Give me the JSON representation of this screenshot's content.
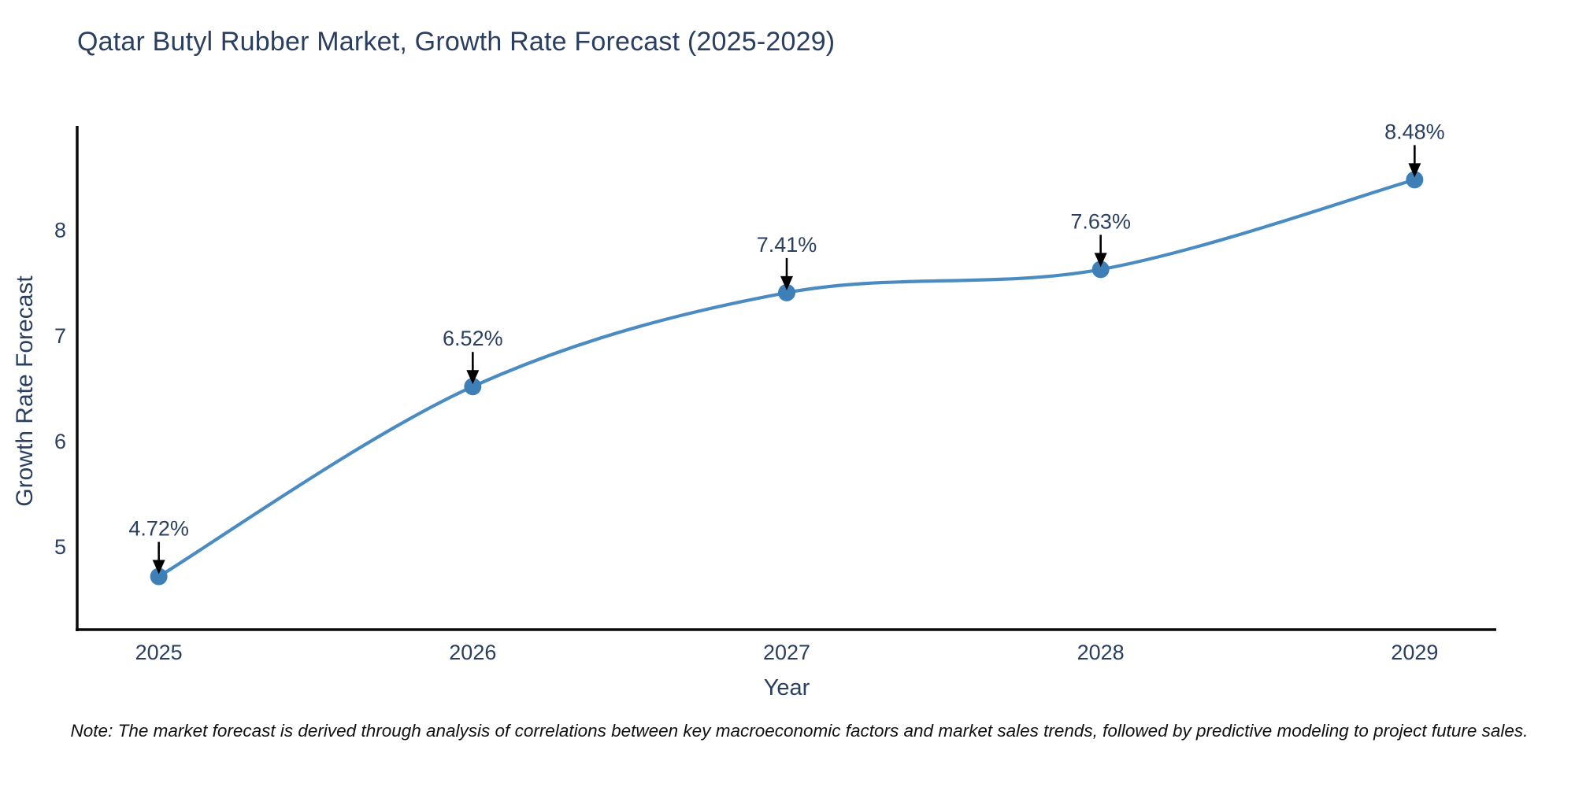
{
  "chart_data": {
    "type": "line",
    "title": "Qatar Butyl Rubber Market, Growth Rate Forecast (2025-2029)",
    "xlabel": "Year",
    "ylabel": "Growth Rate Forecast",
    "x": [
      2025,
      2026,
      2027,
      2028,
      2029
    ],
    "values": [
      4.72,
      6.52,
      7.41,
      7.63,
      8.48
    ],
    "point_labels": [
      "4.72%",
      "6.52%",
      "7.41%",
      "7.63%",
      "8.48%"
    ],
    "yticks": [
      5,
      6,
      7,
      8
    ],
    "xlim": [
      2024.74,
      2029.26
    ],
    "ylim": [
      4.217,
      8.99
    ],
    "line_shape": "spline",
    "grid": false,
    "legend_position": "none",
    "colors": {
      "line": "#4a8bc2",
      "marker": "#3f7fb8",
      "axis_line": "#0a0a0a",
      "tick_text": "#2a3f5f",
      "annotation_text": "#2a3f5f",
      "annotation_arrow": "#000000"
    }
  },
  "note": {
    "text": "Note: The market forecast is derived through analysis of correlations between key macroeconomic factors and market sales trends, followed by predictive modeling to project future sales."
  }
}
